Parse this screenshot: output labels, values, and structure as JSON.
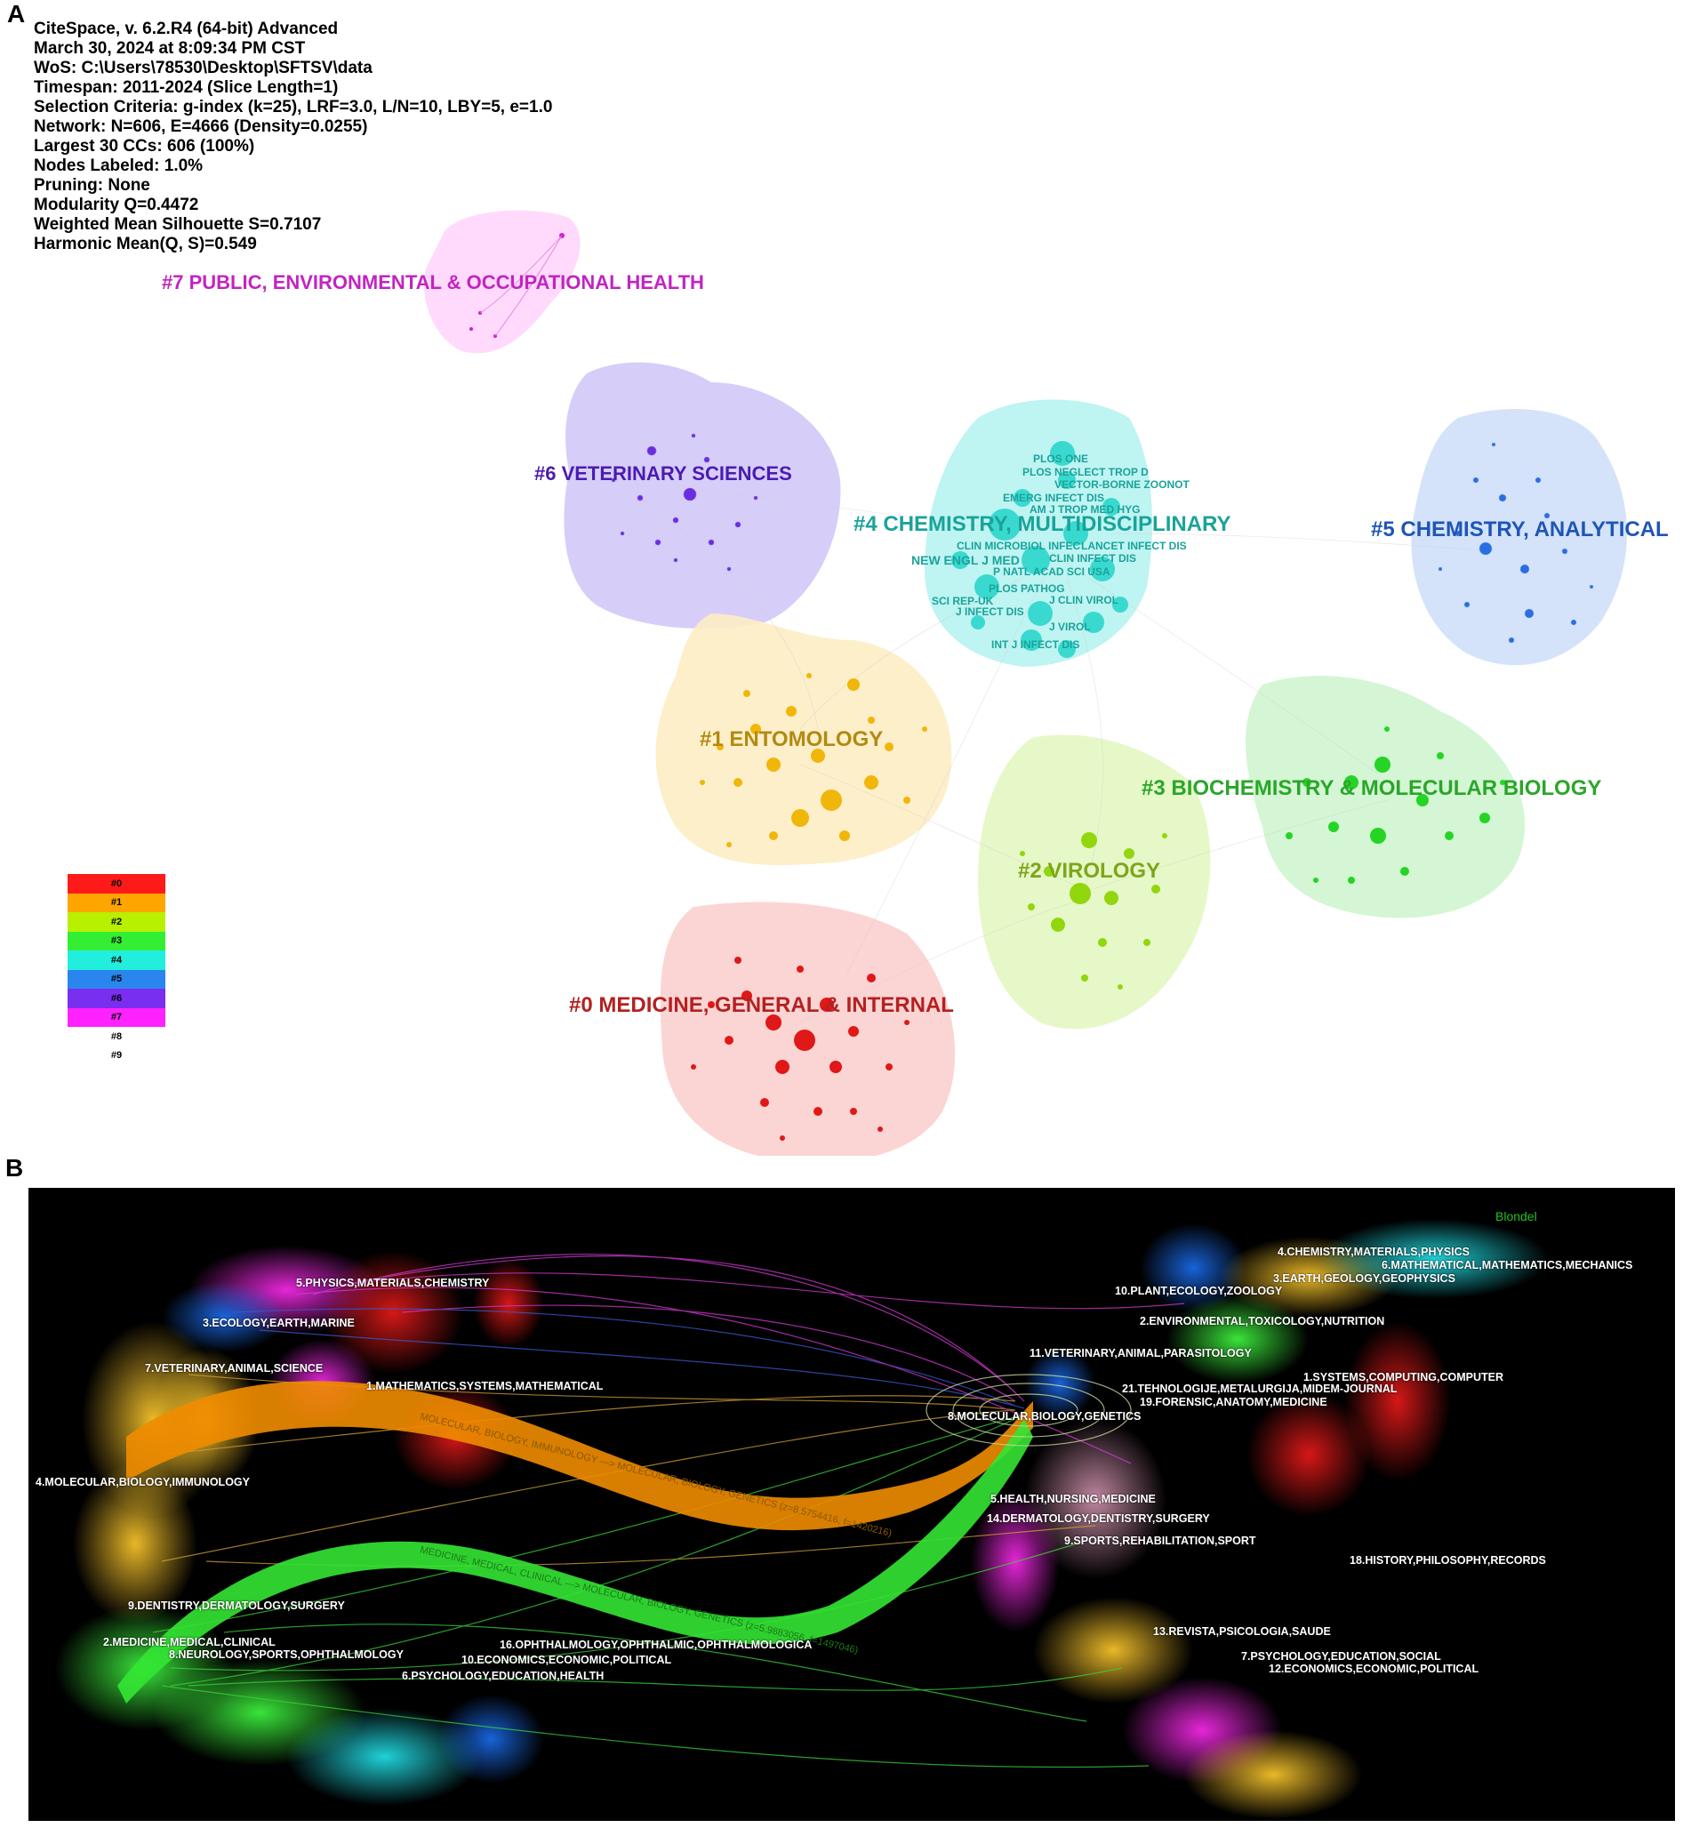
{
  "panel_a": {
    "letter": "A",
    "meta_lines": [
      "CiteSpace, v. 6.2.R4 (64-bit) Advanced",
      "March 30, 2024 at 8:09:34 PM CST",
      "WoS: C:\\Users\\78530\\Desktop\\SFTSV\\data",
      "Timespan: 2011-2024 (Slice Length=1)",
      "Selection Criteria: g-index (k=25), LRF=3.0, L/N=10, LBY=5, e=1.0",
      "Network: N=606, E=4666 (Density=0.0255)",
      "Largest 30 CCs: 606 (100%)",
      "Nodes Labeled: 1.0%",
      "Pruning: None",
      "Modularity Q=0.4472",
      "Weighted Mean Silhouette S=0.7107",
      "Harmonic Mean(Q, S)=0.549"
    ],
    "clusters": [
      {
        "label": "#7 PUBLIC, ENVIRONMENTAL & OCCUPATIONAL HEALTH",
        "color": "#c224c2"
      },
      {
        "label": "#6 VETERINARY SCIENCES",
        "color": "#4a1bb0"
      },
      {
        "label": "#4 CHEMISTRY, MULTIDISCIPLINARY",
        "color": "#1aa39a"
      },
      {
        "label": "#5 CHEMISTRY, ANALYTICAL",
        "color": "#1f55b5"
      },
      {
        "label": "#1 ENTOMOLOGY",
        "color": "#b28a10"
      },
      {
        "label": "#3 BIOCHEMISTRY & MOLECULAR BIOLOGY",
        "color": "#2aa62a"
      },
      {
        "label": "#2 VIROLOGY",
        "color": "#7ea51a"
      },
      {
        "label": "#0 MEDICINE, GENERAL & INTERNAL",
        "color": "#b52020"
      }
    ],
    "journals": [
      "PLOS ONE",
      "PLOS NEGLECT TROP D",
      "VECTOR-BORNE ZOONOT",
      "EMERG INFECT DIS",
      "AM J TROP MED HYG",
      "CLIN MICROBIOL INFEC",
      "LANCET INFECT DIS",
      "NEW ENGL J MED",
      "CLIN INFECT DIS",
      "P NATL ACAD SCI USA",
      "PLOS PATHOG",
      "SCI REP-UK",
      "J CLIN VIROL",
      "J INFECT DIS",
      "J VIROL",
      "INT J INFECT DIS"
    ],
    "legend": [
      {
        "label": "#0",
        "color": "#ff1a1a"
      },
      {
        "label": "#1",
        "color": "#ffa500"
      },
      {
        "label": "#2",
        "color": "#b8f000"
      },
      {
        "label": "#3",
        "color": "#33ee33"
      },
      {
        "label": "#4",
        "color": "#22eedd"
      },
      {
        "label": "#5",
        "color": "#2a86ee"
      },
      {
        "label": "#6",
        "color": "#7a2ef0"
      },
      {
        "label": "#7",
        "color": "#ff22ff"
      },
      {
        "label": "#8",
        "color": "#ffffff"
      },
      {
        "label": "#9",
        "color": "#ffffff"
      }
    ]
  },
  "panel_b": {
    "letter": "B",
    "method": "Blondel",
    "left_labels": [
      "5.PHYSICS,MATERIALS,CHEMISTRY",
      "3.ECOLOGY,EARTH,MARINE",
      "7.VETERINARY,ANIMAL,SCIENCE",
      "1.MATHEMATICS,SYSTEMS,MATHEMATICAL",
      "4.MOLECULAR,BIOLOGY,IMMUNOLOGY",
      "9.DENTISTRY,DERMATOLOGY,SURGERY",
      "2.MEDICINE,MEDICAL,CLINICAL",
      "8.NEUROLOGY,SPORTS,OPHTHALMOLOGY",
      "16.OPHTHALMOLOGY,OPHTHALMIC,OPHTHALMOLOGICA",
      "10.ECONOMICS,ECONOMIC,POLITICAL",
      "6.PSYCHOLOGY,EDUCATION,HEALTH"
    ],
    "right_labels": [
      "4.CHEMISTRY,MATERIALS,PHYSICS",
      "6.MATHEMATICAL,MATHEMATICS,MECHANICS",
      "3.EARTH,GEOLOGY,GEOPHYSICS",
      "10.PLANT,ECOLOGY,ZOOLOGY",
      "2.ENVIRONMENTAL,TOXICOLOGY,NUTRITION",
      "11.VETERINARY,ANIMAL,PARASITOLOGY",
      "1.SYSTEMS,COMPUTING,COMPUTER",
      "21.TEHNOLOGIJE,METALURGIJA,MIDEM-JOURNAL",
      "19.FORENSIC,ANATOMY,MEDICINE",
      "8.MOLECULAR,BIOLOGY,GENETICS",
      "5.HEALTH,NURSING,MEDICINE",
      "14.DERMATOLOGY,DENTISTRY,SURGERY",
      "9.SPORTS,REHABILITATION,SPORT",
      "18.HISTORY,PHILOSOPHY,RECORDS",
      "13.REVISTA,PSICOLOGIA,SAUDE",
      "7.PSYCHOLOGY,EDUCATION,SOCIAL",
      "12.ECONOMICS,ECONOMIC,POLITICAL"
    ],
    "flows": [
      {
        "label": "MOLECULAR, BIOLOGY, IMMUNOLOGY ---> MOLECULAR, BIOLOGY, GENETICS (z=8.5754416, f=1420216)",
        "color": "#f08c00"
      },
      {
        "label": "MEDICINE, MEDICAL, CLINICAL ---> MOLECULAR, BIOLOGY, GENETICS (z=5.9883056, f=1497046)",
        "color": "#33e633"
      }
    ]
  }
}
